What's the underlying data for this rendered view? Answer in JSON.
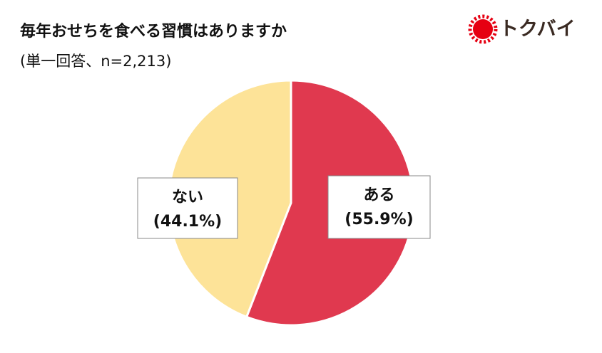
{
  "chart_data": {
    "type": "pie",
    "title": "毎年おせちを食べる習慣はありますか",
    "subtitle": "(単一回答、n=2,213)",
    "logo": "トクバイ",
    "categories": [
      "ある",
      "ない"
    ],
    "values": [
      55.9,
      44.1
    ],
    "value_labels": [
      "(55.9%)",
      "(44.1%)"
    ],
    "colors": [
      "#e0394f",
      "#fde398"
    ]
  }
}
